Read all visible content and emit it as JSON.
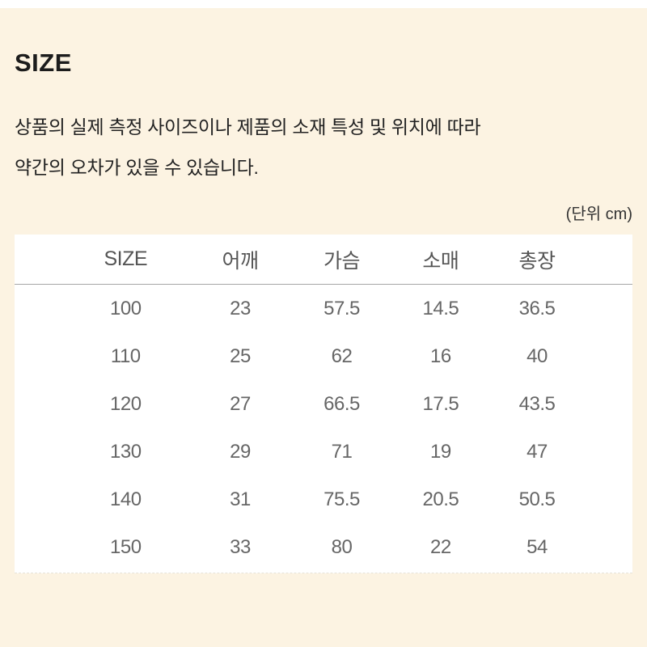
{
  "colors": {
    "page_background": "#fcf3e2",
    "table_background": "#ffffff",
    "title_text": "#1c1c1c",
    "body_text": "#222222",
    "table_header_text": "#555555",
    "table_cell_text": "#666666",
    "header_divider_line": "#a6a6a6"
  },
  "section": {
    "title": "SIZE",
    "disclaimer_line1": "상품의 실제 측정 사이즈이나 제품의 소재 특성 및 위치에 따라",
    "disclaimer_line2": "약간의 오차가 있을 수 있습니다.",
    "unit_note": "(단위 cm)"
  },
  "size_table": {
    "columns": [
      "SIZE",
      "어깨",
      "가슴",
      "소매",
      "총장"
    ],
    "rows": [
      [
        "100",
        "23",
        "57.5",
        "14.5",
        "36.5"
      ],
      [
        "110",
        "25",
        "62",
        "16",
        "40"
      ],
      [
        "120",
        "27",
        "66.5",
        "17.5",
        "43.5"
      ],
      [
        "130",
        "29",
        "71",
        "19",
        "47"
      ],
      [
        "140",
        "31",
        "75.5",
        "20.5",
        "50.5"
      ],
      [
        "150",
        "33",
        "80",
        "22",
        "54"
      ]
    ]
  }
}
